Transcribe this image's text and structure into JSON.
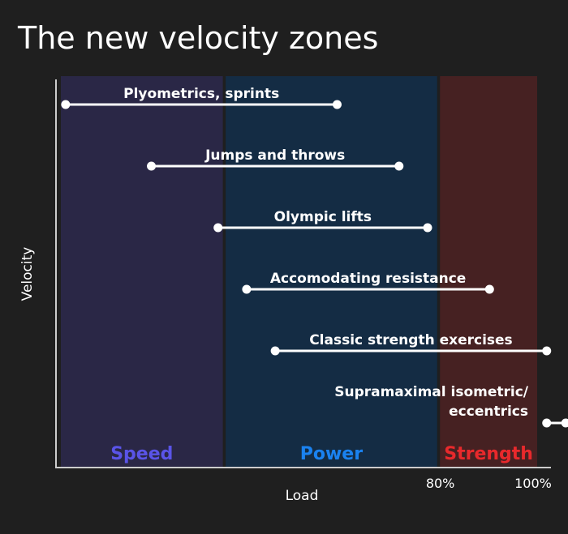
{
  "chart_data": {
    "type": "range",
    "title": "The new velocity zones",
    "xlabel": "Load",
    "ylabel": "Velocity",
    "x_ticks": [
      {
        "value": 80,
        "label": "80%"
      },
      {
        "value": 100,
        "label": "100%"
      }
    ],
    "zones": [
      {
        "name": "Speed",
        "start": 0,
        "end": 34,
        "fill": "#2a2746",
        "label_color": "#5a54e8"
      },
      {
        "name": "Power",
        "start": 34.6,
        "end": 79,
        "fill": "#142c44",
        "label_color": "#1a82f0"
      },
      {
        "name": "Strength",
        "start": 79.6,
        "end": 100,
        "fill": "#462122",
        "label_color": "#e8292c"
      }
    ],
    "ranges": [
      {
        "label": "Plyometrics, sprints",
        "start": 1,
        "end": 58
      },
      {
        "label": "Jumps and throws",
        "start": 19,
        "end": 71
      },
      {
        "label": "Olympic lifts",
        "start": 33,
        "end": 77
      },
      {
        "label": "Accomodating resistance",
        "start": 39,
        "end": 90
      },
      {
        "label": "Classic strength exercises",
        "start": 45,
        "end": 102
      },
      {
        "label": "Supramaximal isometric/ eccentrics",
        "start": 102,
        "end": 106
      }
    ],
    "xlim": [
      0,
      106
    ],
    "colors": {
      "background": "#1f1f1f",
      "axis": "#cccccc",
      "text": "#ffffff",
      "range_line": "#ffffff"
    }
  }
}
